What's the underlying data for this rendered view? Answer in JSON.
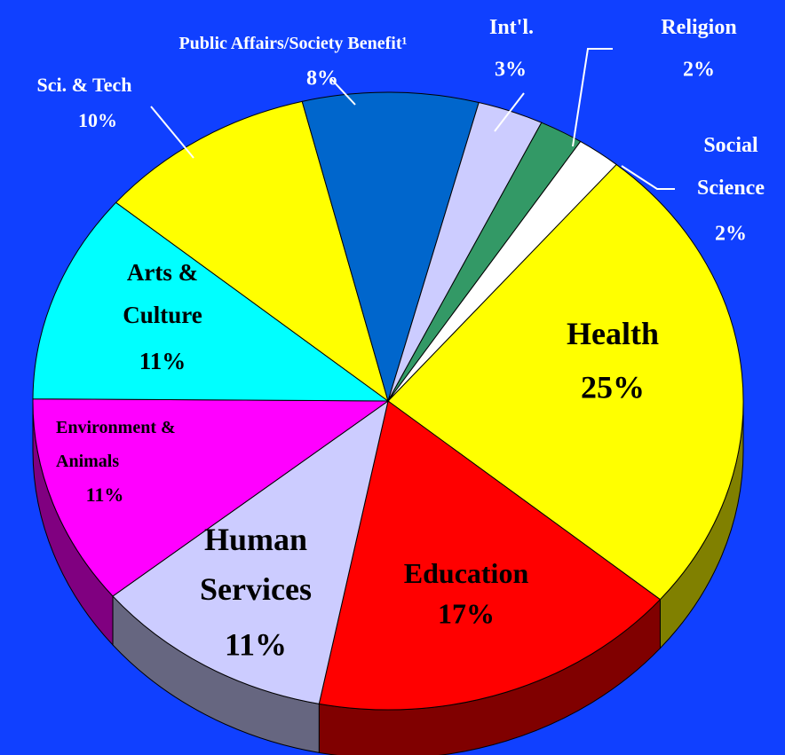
{
  "chart_data": {
    "type": "pie3d",
    "categories": [
      "Health",
      "Education",
      "Human\nServices",
      "Environment &\nAnimals",
      "Arts &\nCulture",
      "Sci. & Tech",
      "Public Affairs/Society Benefit¹",
      "Int'l.",
      "Religion",
      "Social\nScience"
    ],
    "values": [
      25,
      17,
      11,
      11,
      11,
      10,
      8,
      3,
      2,
      2
    ],
    "value_labels": [
      "25%",
      "17%",
      "11%",
      "11%",
      "11%",
      "10%",
      "8%",
      "3%",
      "2%",
      "2%"
    ],
    "colors": [
      "#ffff00",
      "#ff0000",
      "#ccccff",
      "#ff00ff",
      "#00ffff",
      "#ffff00",
      "#0066cc",
      "#ccccff",
      "#339966",
      "#ffffff"
    ]
  }
}
